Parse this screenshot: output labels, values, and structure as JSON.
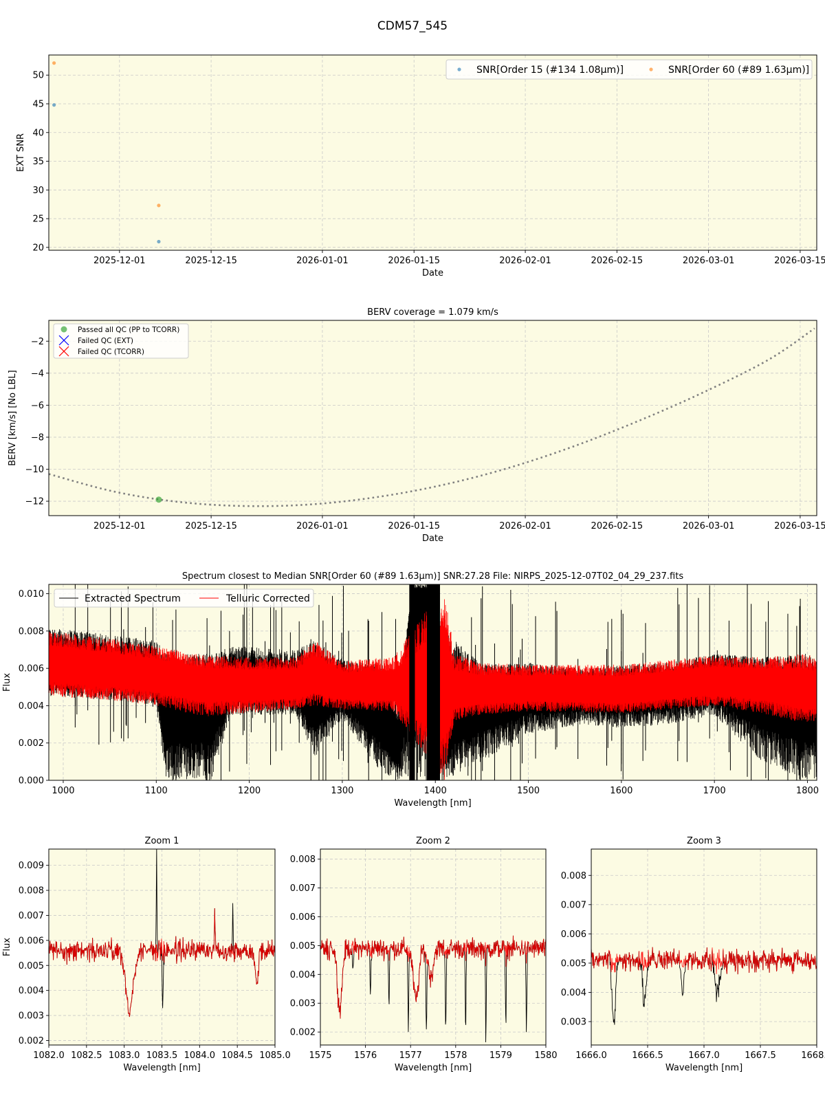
{
  "figure": {
    "title": "CDM57_545",
    "background": "#ffffff",
    "axes_facecolor": "#fcfbe3"
  },
  "colors": {
    "snr_order15": "#1f77b4",
    "snr_order60": "#ff7f0e",
    "passed_qc": "#2ca02c",
    "failed_ext": "#0000ff",
    "failed_tcorr": "#ff0000",
    "berv_curve": "#808080",
    "extracted": "#000000",
    "telluric": "#ff0000",
    "grid": "#c8c8c8"
  },
  "chart_data": [
    {
      "id": "snr_panel",
      "type": "scatter",
      "title": "",
      "xlabel": "Date",
      "ylabel": "EXT SNR",
      "ylim": [
        19.5,
        53.5
      ],
      "xlim": [
        "2025-11-20",
        "2026-03-17"
      ],
      "grid": true,
      "legend_position": "upper right",
      "x_ticks": [
        "2025-12-01",
        "2025-12-15",
        "2026-01-01",
        "2026-01-15",
        "2026-02-01",
        "2026-02-15",
        "2026-03-01",
        "2026-03-15"
      ],
      "y_ticks": [
        20,
        25,
        30,
        35,
        40,
        45,
        50
      ],
      "series": [
        {
          "name": "SNR[Order 15 (#134 1.08μm)]",
          "x": [
            "2025-11-21",
            "2025-12-07"
          ],
          "values": [
            44.8,
            21.0
          ]
        },
        {
          "name": "SNR[Order 60 (#89 1.63μm)]",
          "x": [
            "2025-11-21",
            "2025-12-07"
          ],
          "values": [
            52.1,
            27.3
          ]
        }
      ]
    },
    {
      "id": "berv_panel",
      "type": "line",
      "title": "BERV coverage = 1.079 km/s",
      "xlabel": "Date",
      "ylabel": "BERV [km/s]  [No LBL]",
      "ylim": [
        -12.9,
        -0.7
      ],
      "xlim": [
        "2025-11-20",
        "2026-03-17"
      ],
      "grid": true,
      "legend_position": "upper left",
      "x_ticks": [
        "2025-12-01",
        "2025-12-15",
        "2026-01-01",
        "2026-01-15",
        "2026-02-01",
        "2026-02-15",
        "2026-03-01",
        "2026-03-15"
      ],
      "y_ticks": [
        -12,
        -10,
        -8,
        -6,
        -4,
        -2
      ],
      "legend": [
        "Passed all QC (PP to TCORR)",
        "Failed QC (EXT)",
        "Failed QC (TCORR)"
      ],
      "series": [
        {
          "name": "BERV curve",
          "style": "dotted",
          "x_days": [
            0,
            10,
            20,
            30,
            40,
            50,
            60,
            70,
            80,
            90,
            100,
            110,
            117
          ],
          "values": [
            -10.3,
            -11.4,
            -12.05,
            -12.3,
            -12.2,
            -11.75,
            -11.0,
            -9.95,
            -8.6,
            -7.0,
            -5.2,
            -3.15,
            -1.2
          ]
        },
        {
          "name": "Passed all QC (PP to TCORR)",
          "x": [
            "2025-12-07"
          ],
          "values": [
            -11.9
          ]
        }
      ]
    },
    {
      "id": "spectrum_panel",
      "type": "line",
      "title": "Spectrum closest to Median SNR[Order 60 (#89 1.63μm)]     SNR:27.28     File: NIRPS_2025-12-07T02_04_29_237.fits",
      "xlabel": "Wavelength [nm]",
      "ylabel": "Flux",
      "xlim": [
        984.5,
        1810
      ],
      "ylim": [
        0.0,
        0.0105
      ],
      "grid": true,
      "legend_position": "upper left",
      "x_ticks": [
        1000,
        1100,
        1200,
        1300,
        1400,
        1500,
        1600,
        1700,
        1800
      ],
      "y_ticks": [
        "0.000",
        "0.002",
        "0.004",
        "0.006",
        "0.008",
        "0.010"
      ],
      "legend": [
        "Extracted Spectrum",
        "Telluric Corrected"
      ],
      "series": [
        {
          "name": "Extracted Spectrum",
          "envelope": {
            "x": [
              985,
              1050,
              1100,
              1110,
              1160,
              1180,
              1250,
              1270,
              1300,
              1340,
              1360,
              1375,
              1390,
              1410,
              1450,
              1500,
              1560,
              1600,
              1650,
              1700,
              1750,
              1800,
              1810
            ],
            "center": [
              0.0062,
              0.0059,
              0.0056,
              0.0045,
              0.0045,
              0.0053,
              0.0051,
              0.0046,
              0.005,
              0.004,
              0.002,
              0.01,
              0.01,
              0.004,
              0.0046,
              0.0049,
              0.0047,
              0.0048,
              0.0049,
              0.0053,
              0.005,
              0.0045,
              0.0045
            ],
            "low": [
              0.0045,
              0.0043,
              0.004,
              0.0,
              0.0,
              0.0035,
              0.0035,
              0.0012,
              0.0033,
              0.0005,
              0.0,
              0.0,
              0.0,
              0.0,
              0.001,
              0.0025,
              0.003,
              0.0028,
              0.003,
              0.0035,
              0.001,
              0.0,
              0.0
            ],
            "high": [
              0.0082,
              0.0078,
              0.0075,
              0.0068,
              0.0068,
              0.0072,
              0.007,
              0.0075,
              0.0065,
              0.0062,
              0.004,
              0.0105,
              0.0105,
              0.008,
              0.0062,
              0.0063,
              0.006,
              0.0062,
              0.0063,
              0.0068,
              0.0066,
              0.0068,
              0.0065
            ]
          }
        },
        {
          "name": "Telluric Corrected",
          "envelope": {
            "x": [
              985,
              1050,
              1100,
              1150,
              1200,
              1250,
              1270,
              1300,
              1350,
              1355,
              1410,
              1420,
              1450,
              1500,
              1600,
              1700,
              1750,
              1800,
              1810
            ],
            "center": [
              0.0062,
              0.0059,
              0.0056,
              0.0052,
              0.0051,
              0.0051,
              0.0055,
              0.005,
              0.005,
              0.005,
              0.005,
              0.0048,
              0.0048,
              0.0049,
              0.0048,
              0.0053,
              0.0052,
              0.0048,
              0.0048
            ],
            "low": [
              0.0045,
              0.0043,
              0.004,
              0.0034,
              0.0036,
              0.0038,
              0.004,
              0.0038,
              0.0037,
              0.0037,
              0.0,
              0.0032,
              0.0035,
              0.0037,
              0.0036,
              0.004,
              0.0036,
              0.003,
              0.0032
            ],
            "high": [
              0.008,
              0.0076,
              0.0072,
              0.0067,
              0.0066,
              0.0066,
              0.0075,
              0.0064,
              0.0066,
              0.0066,
              0.0105,
              0.0068,
              0.0063,
              0.0062,
              0.0062,
              0.0067,
              0.0066,
              0.0068,
              0.0065
            ]
          }
        }
      ]
    },
    {
      "id": "zoom1",
      "type": "line",
      "title": "Zoom 1",
      "xlabel": "Wavelength [nm]",
      "ylabel": "Flux",
      "xlim": [
        1082.0,
        1085.0
      ],
      "ylim": [
        0.00182,
        0.00965
      ],
      "grid": true,
      "x_ticks": [
        "1082.0",
        "1082.5",
        "1083.0",
        "1083.5",
        "1084.0",
        "1084.5",
        "1085.0"
      ],
      "y_ticks": [
        "0.002",
        "0.003",
        "0.004",
        "0.005",
        "0.006",
        "0.007",
        "0.008",
        "0.009"
      ],
      "continuum": 0.0056,
      "noise": 0.00035,
      "absorption_lines": [
        {
          "center": 1083.07,
          "depth": 0.0024,
          "width": 0.05,
          "telluric": false
        },
        {
          "center": 1084.76,
          "depth": 0.0013,
          "width": 0.02,
          "telluric": false
        },
        {
          "center": 1083.51,
          "depth": 0.0021,
          "width": 0.008,
          "telluric": true
        }
      ],
      "emission_spikes": [
        {
          "center": 1083.43,
          "peak": 0.0095,
          "telluric": true
        },
        {
          "center": 1084.2,
          "peak": 0.0074,
          "telluric": false
        },
        {
          "center": 1084.44,
          "peak": 0.0073,
          "telluric": true
        }
      ]
    },
    {
      "id": "zoom2",
      "type": "line",
      "title": "Zoom 2",
      "xlabel": "Wavelength [nm]",
      "ylabel": "",
      "xlim": [
        1575,
        1580
      ],
      "ylim": [
        0.00155,
        0.00835
      ],
      "grid": true,
      "x_ticks": [
        "1575",
        "1576",
        "1577",
        "1578",
        "1579",
        "1580"
      ],
      "y_ticks": [
        "0.002",
        "0.003",
        "0.004",
        "0.005",
        "0.006",
        "0.007",
        "0.008"
      ],
      "continuum": 0.0049,
      "noise": 0.0003,
      "absorption_lines": [
        {
          "center": 1575.43,
          "depth": 0.0021,
          "width": 0.05,
          "telluric": false
        },
        {
          "center": 1577.12,
          "depth": 0.0018,
          "width": 0.06,
          "telluric": false
        },
        {
          "center": 1577.45,
          "depth": 0.001,
          "width": 0.05,
          "telluric": false
        },
        {
          "center": 1575.72,
          "depth": 0.0011,
          "width": 0.01,
          "telluric": true
        },
        {
          "center": 1576.11,
          "depth": 0.0015,
          "width": 0.01,
          "telluric": true
        },
        {
          "center": 1576.52,
          "depth": 0.0019,
          "width": 0.01,
          "telluric": true
        },
        {
          "center": 1576.95,
          "depth": 0.0027,
          "width": 0.01,
          "telluric": true
        },
        {
          "center": 1577.35,
          "depth": 0.0029,
          "width": 0.01,
          "telluric": true
        },
        {
          "center": 1577.78,
          "depth": 0.0029,
          "width": 0.01,
          "telluric": true
        },
        {
          "center": 1578.22,
          "depth": 0.0028,
          "width": 0.01,
          "telluric": true
        },
        {
          "center": 1578.67,
          "depth": 0.0031,
          "width": 0.01,
          "telluric": true
        },
        {
          "center": 1579.11,
          "depth": 0.0027,
          "width": 0.01,
          "telluric": true
        },
        {
          "center": 1579.57,
          "depth": 0.0028,
          "width": 0.01,
          "telluric": true
        }
      ],
      "emission_spikes": []
    },
    {
      "id": "zoom3",
      "type": "line",
      "title": "Zoom 3",
      "xlabel": "Wavelength [nm]",
      "ylabel": "",
      "xlim": [
        1666.0,
        1668.0
      ],
      "ylim": [
        0.0022,
        0.0089
      ],
      "grid": true,
      "x_ticks": [
        "1666.0",
        "1666.5",
        "1667.0",
        "1667.5",
        "1668.0"
      ],
      "y_ticks": [
        "0.003",
        "0.004",
        "0.005",
        "0.006",
        "0.007",
        "0.008"
      ],
      "continuum": 0.0051,
      "noise": 0.0003,
      "absorption_lines": [
        {
          "center": 1666.2,
          "depth": 0.0022,
          "width": 0.015,
          "telluric": true
        },
        {
          "center": 1666.47,
          "depth": 0.0015,
          "width": 0.015,
          "telluric": true
        },
        {
          "center": 1666.81,
          "depth": 0.0011,
          "width": 0.012,
          "telluric": true
        },
        {
          "center": 1667.12,
          "depth": 0.0012,
          "width": 0.02,
          "telluric": true
        }
      ],
      "emission_spikes": []
    }
  ]
}
